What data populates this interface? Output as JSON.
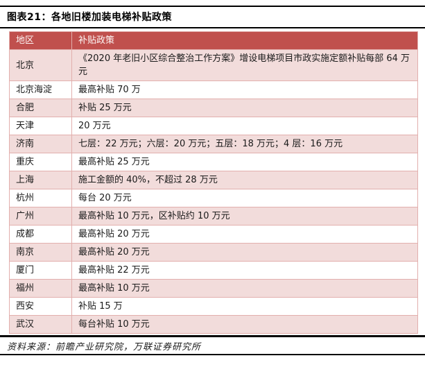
{
  "figure": {
    "title": "图表21：各地旧楼加装电梯补贴政策",
    "source": "资料来源：前瞻产业研究院，万联证券研究所"
  },
  "table": {
    "headers": [
      "地区",
      "补贴政策"
    ],
    "rows": [
      {
        "region": "北京",
        "policy": "《2020 年老旧小区综合整治工作方案》增设电梯项目市政实施定额补贴每部 64 万元"
      },
      {
        "region": "北京海淀",
        "policy": "最高补贴 70 万"
      },
      {
        "region": "合肥",
        "policy": "补贴 25 万元"
      },
      {
        "region": "天津",
        "policy": "20 万元"
      },
      {
        "region": "济南",
        "policy": "七层：22 万元；六层：20 万元；五层：18 万元；4 层：16 万元"
      },
      {
        "region": "重庆",
        "policy": "最高补贴 25 万元"
      },
      {
        "region": "上海",
        "policy": "施工金额的 40%，不超过 28 万元"
      },
      {
        "region": "杭州",
        "policy": "每台 20 万元"
      },
      {
        "region": "广州",
        "policy": "最高补贴 10 万元，区补贴约 10 万元"
      },
      {
        "region": "成都",
        "policy": "最高补贴 20 万元"
      },
      {
        "region": "南京",
        "policy": "最高补贴 20 万元"
      },
      {
        "region": "厦门",
        "policy": "最高补贴 22 万元"
      },
      {
        "region": "福州",
        "policy": "最高补贴 10 万元"
      },
      {
        "region": "西安",
        "policy": "补贴 15 万"
      },
      {
        "region": "武汉",
        "policy": "每台补贴 10 万元"
      }
    ]
  },
  "colors": {
    "header_bg": "#c0504d",
    "header_text": "#fdf7f6",
    "row_alt_bg": "#f2dcdb",
    "row_bg": "#ffffff",
    "table_border": "#e2afad",
    "rule": "#000000"
  }
}
